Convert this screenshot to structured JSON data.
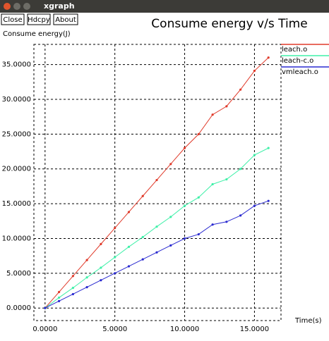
{
  "window": {
    "title": "xgraph",
    "buttons": [
      "Close",
      "Hdcpy",
      "About"
    ]
  },
  "chart_data": {
    "type": "line",
    "title": "Consume energy v/s Time",
    "y_label": "Consume energy(J)",
    "x_label": "Time(s)",
    "x": [
      0,
      1,
      2,
      3,
      4,
      5,
      6,
      7,
      8,
      9,
      10,
      11,
      12,
      13,
      14,
      15,
      16
    ],
    "series": [
      {
        "name": "leach.o",
        "color": "#e03a2a",
        "values": [
          0,
          2.3,
          4.6,
          6.9,
          9.2,
          11.5,
          13.8,
          16.1,
          18.4,
          20.7,
          23.0,
          25.0,
          27.8,
          29.0,
          31.4,
          34.1,
          36.0
        ]
      },
      {
        "name": "leach-c.o",
        "color": "#3ef0a8",
        "values": [
          0,
          1.5,
          2.9,
          4.4,
          5.8,
          7.3,
          8.8,
          10.2,
          11.7,
          13.1,
          14.7,
          15.9,
          17.8,
          18.5,
          20.0,
          22.0,
          23.0
        ]
      },
      {
        "name": "vmleach.o",
        "color": "#2a2ad0",
        "values": [
          0,
          1.0,
          2.0,
          3.0,
          4.0,
          5.0,
          6.0,
          7.0,
          8.0,
          9.0,
          10.0,
          10.6,
          12.0,
          12.4,
          13.3,
          14.7,
          15.4
        ]
      }
    ],
    "xlim": [
      -0.8,
      16.9
    ],
    "ylim": [
      -1.8,
      37.9
    ],
    "xticks": [
      {
        "value": 0,
        "label": "0.0000"
      },
      {
        "value": 5,
        "label": "5.0000"
      },
      {
        "value": 10,
        "label": "10.0000"
      },
      {
        "value": 15,
        "label": "15.0000"
      }
    ],
    "yticks": [
      {
        "value": 0,
        "label": "0.0000"
      },
      {
        "value": 5,
        "label": "5.0000"
      },
      {
        "value": 10,
        "label": "10.0000"
      },
      {
        "value": 15,
        "label": "15.0000"
      },
      {
        "value": 20,
        "label": "20.0000"
      },
      {
        "value": 25,
        "label": "25.0000"
      },
      {
        "value": 30,
        "label": "30.0000"
      },
      {
        "value": 35,
        "label": "35.0000"
      }
    ],
    "grid": true
  }
}
